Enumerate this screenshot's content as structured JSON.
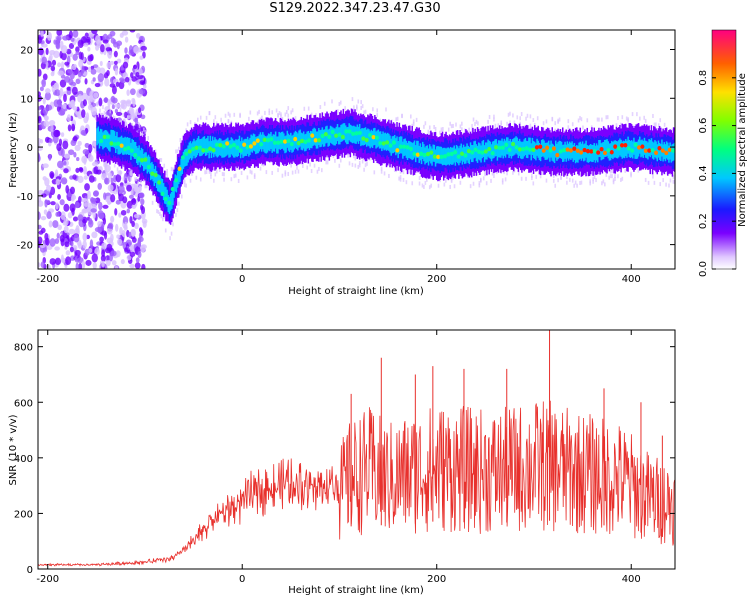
{
  "title": "S129.2022.347.23.47.G30",
  "colors": {
    "snr_line": "#e8302c",
    "axis": "#000000"
  },
  "chart_data": [
    {
      "type": "heatmap",
      "xlabel": "Height of straight line (km)",
      "ylabel": "Frequency (Hz)",
      "xlim": [
        -210,
        445
      ],
      "ylim": [
        -25,
        24
      ],
      "xticks": [
        -200,
        0,
        200,
        400
      ],
      "yticks": [
        -20,
        -10,
        0,
        10,
        20
      ],
      "colorbar": {
        "label": "Normalized spectral amplitude",
        "range": [
          0,
          1
        ],
        "ticks": [
          0.0,
          0.2,
          0.4,
          0.6,
          0.8
        ]
      },
      "ridge": {
        "x": [
          -150,
          -130,
          -110,
          -100,
          -90,
          -80,
          -75,
          -70,
          -60,
          -50,
          -30,
          0,
          20,
          50,
          80,
          110,
          130,
          160,
          200,
          240,
          280,
          320,
          360,
          400,
          440
        ],
        "y": [
          2,
          1,
          -1,
          -3,
          -6,
          -10,
          -12,
          -8,
          -2,
          0,
          0,
          0,
          1,
          1,
          2,
          3,
          2,
          0,
          -2,
          -1,
          0,
          -1,
          -1,
          0,
          -1
        ]
      }
    },
    {
      "type": "line",
      "xlabel": "Height of straight line (km)",
      "ylabel": "SNR (10 * v/v)",
      "xlim": [
        -210,
        445
      ],
      "ylim": [
        0,
        860
      ],
      "xticks": [
        -200,
        0,
        200,
        400
      ],
      "yticks": [
        0,
        200,
        400,
        600,
        800
      ],
      "envelope": {
        "x": [
          -210,
          -150,
          -100,
          -70,
          -50,
          -30,
          -10,
          10,
          30,
          50,
          70,
          90,
          100,
          110,
          130,
          150,
          170,
          200,
          230,
          260,
          290,
          310,
          330,
          360,
          390,
          420,
          440
        ],
        "y": [
          15,
          15,
          25,
          40,
          100,
          180,
          220,
          270,
          300,
          310,
          300,
          300,
          320,
          380,
          420,
          380,
          400,
          430,
          420,
          410,
          430,
          440,
          420,
          400,
          380,
          300,
          280
        ]
      },
      "peaks": {
        "x": [
          112,
          143,
          178,
          196,
          228,
          272,
          316,
          372,
          410,
          432
        ],
        "y": [
          630,
          760,
          700,
          730,
          720,
          720,
          860,
          650,
          600,
          480
        ]
      }
    }
  ]
}
